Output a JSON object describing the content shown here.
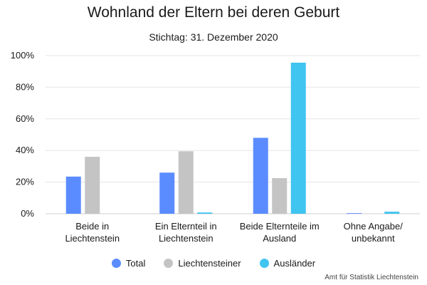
{
  "chart_data": {
    "type": "bar",
    "title": "Wohnland der Eltern bei deren Geburt",
    "subtitle": "Stichtag: 31. Dezember 2020",
    "categories": [
      [
        "Beide in",
        "Liechtenstein"
      ],
      [
        "Ein Elternteil in",
        "Liechtenstein"
      ],
      [
        "Beide Elternteile im",
        "Ausland"
      ],
      [
        "Ohne Angabe/",
        "unbekannt"
      ]
    ],
    "series": [
      {
        "name": "Total",
        "color": "#5b8cff",
        "values": [
          23.5,
          26,
          48,
          0.4
        ]
      },
      {
        "name": "Liechtensteiner",
        "color": "#c4c4c4",
        "values": [
          36,
          39.5,
          22.5,
          0
        ]
      },
      {
        "name": "Ausländer",
        "color": "#40c4f0",
        "values": [
          0,
          0.8,
          95.5,
          1.3
        ]
      }
    ],
    "ylim": [
      0,
      100
    ],
    "yticks": [
      "0%",
      "20%",
      "40%",
      "60%",
      "80%",
      "100%"
    ],
    "grid": true,
    "legend": "bottom-center"
  },
  "source": "Amt für Statistik Liechtenstein"
}
